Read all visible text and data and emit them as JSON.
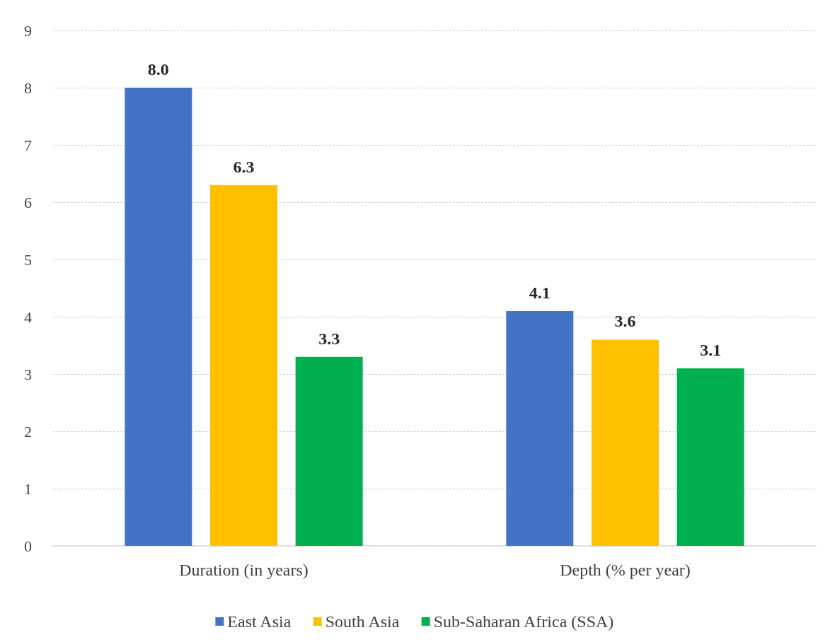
{
  "chart_data": {
    "type": "bar",
    "categories": [
      "Duration (in years)",
      "Depth (% per year)"
    ],
    "series": [
      {
        "name": "East Asia",
        "color": "#4472c4",
        "values": [
          8.0,
          4.1
        ],
        "value_labels": [
          "8.0",
          "4.1"
        ]
      },
      {
        "name": "South Asia",
        "color": "#ffc000",
        "values": [
          6.3,
          3.6
        ],
        "value_labels": [
          "6.3",
          "3.6"
        ]
      },
      {
        "name": "Sub-Saharan Africa (SSA)",
        "color": "#00b050",
        "values": [
          3.3,
          3.1
        ],
        "value_labels": [
          "3.3",
          "3.1"
        ]
      }
    ],
    "ylim": [
      0,
      9
    ],
    "yticks": [
      0,
      1,
      2,
      3,
      4,
      5,
      6,
      7,
      8,
      9
    ],
    "grid": "y",
    "legend": "bottom"
  }
}
